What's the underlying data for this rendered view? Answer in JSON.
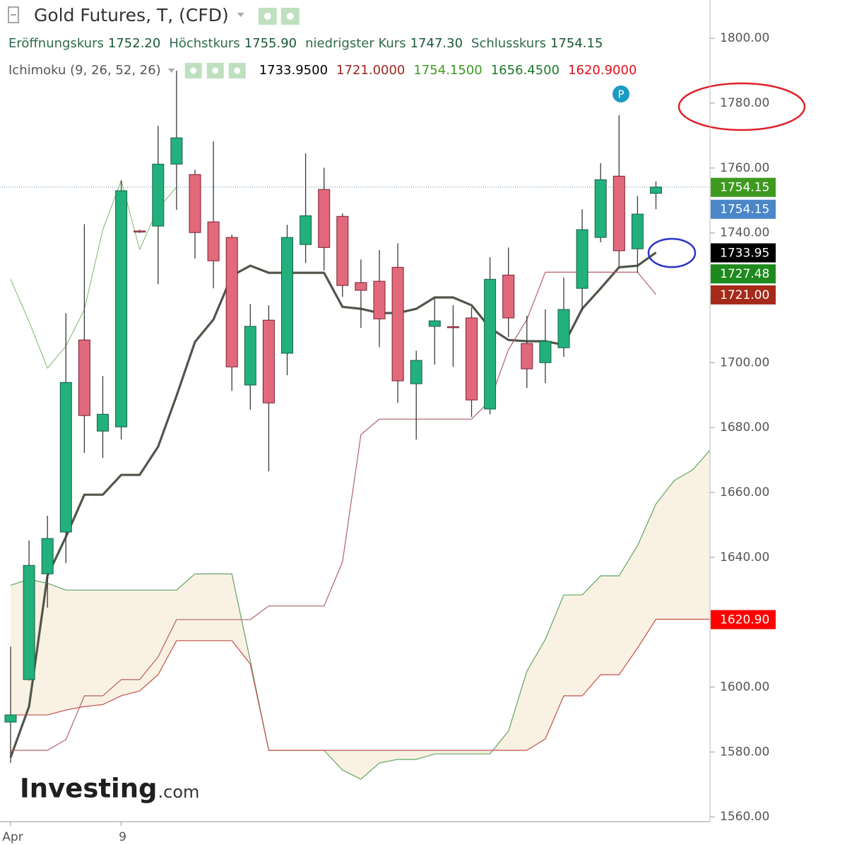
{
  "chart_data": {
    "type": "candlestick",
    "title": "Gold Futures, T, (CFD)",
    "ohlc_header": [
      {
        "name": "Eröffnungskurs",
        "value": "1752.20"
      },
      {
        "name": "Höchstkurs",
        "value": "1755.90"
      },
      {
        "name": "niedrigster Kurs",
        "value": "1747.30"
      },
      {
        "name": "Schlusskurs",
        "value": "1754.15"
      }
    ],
    "indicator": "Ichimoku (9, 26, 52, 26)",
    "readings": [
      {
        "text": "1733.9500",
        "color": "#000000"
      },
      {
        "text": "1721.0000",
        "color": "#a0281e"
      },
      {
        "text": "1754.1500",
        "color": "#3e9a1f"
      },
      {
        "text": "1656.4500",
        "color": "#1d7a2d"
      },
      {
        "text": "1620.9000",
        "color": "#e0101a"
      }
    ],
    "categories": [
      "Apr",
      null,
      null,
      null,
      null,
      null,
      "9",
      null,
      null,
      null,
      null,
      null,
      null,
      null,
      null,
      null,
      null,
      null,
      null,
      null,
      null,
      null,
      null,
      null,
      null,
      null,
      null,
      null,
      null,
      null,
      null,
      null,
      null,
      null,
      null,
      null,
      null,
      null,
      null
    ],
    "open": [
      1589.2,
      1602.3,
      1634.9,
      1647.8,
      1707.0,
      1678.9,
      1680.2,
      1740.6,
      1742.1,
      1761.2,
      1758.0,
      1743.4,
      1738.6,
      1693.1,
      1713.1,
      1702.9,
      1736.4,
      1753.4,
      1745.1,
      1724.7,
      1725.1,
      1729.4,
      1693.5,
      1711.2,
      1711.1,
      1713.8,
      1685.7,
      1727.0,
      1705.9,
      1700.0,
      1704.6,
      1722.9,
      1738.6,
      1757.5,
      1735.1,
      1752.2,
      null,
      null,
      null
    ],
    "high": [
      1612.5,
      1645.2,
      1652.8,
      1715.3,
      1742.7,
      1695.9,
      1756.2,
      1741.0,
      1773.0,
      1790.0,
      1759.5,
      1768.2,
      1739.5,
      1718.1,
      1717.7,
      1742.5,
      1764.5,
      1760.1,
      1746.0,
      1731.8,
      1734.7,
      1736.8,
      1703.7,
      1719.9,
      1717.7,
      1717.0,
      1732.5,
      1735.5,
      1714.4,
      1716.4,
      1726.2,
      1747.3,
      1761.5,
      1776.3,
      1751.4,
      1755.9,
      null,
      null,
      null
    ],
    "low": [
      1576.6,
      1602.0,
      1624.5,
      1638.2,
      1672.2,
      1670.6,
      1676.3,
      1740.0,
      1724.2,
      1747.1,
      1732.1,
      1722.9,
      1691.3,
      1685.5,
      1666.5,
      1696.1,
      1730.7,
      1728.4,
      1720.3,
      1710.7,
      1704.8,
      1687.6,
      1676.3,
      1699.4,
      1698.7,
      1683.3,
      1684.1,
      1707.9,
      1692.2,
      1693.7,
      1701.8,
      1715.9,
      1737.1,
      1729.4,
      1727.7,
      1747.3,
      null,
      null,
      null
    ],
    "close": [
      1591.4,
      1637.5,
      1645.8,
      1693.9,
      1683.7,
      1684.1,
      1753.0,
      1740.4,
      1761.2,
      1769.3,
      1740.1,
      1731.4,
      1698.7,
      1711.2,
      1687.6,
      1738.6,
      1745.3,
      1735.5,
      1723.8,
      1722.3,
      1713.5,
      1694.4,
      1700.7,
      1712.9,
      1710.9,
      1688.5,
      1725.7,
      1713.8,
      1698.1,
      1706.6,
      1716.4,
      1741.0,
      1756.4,
      1734.5,
      1745.8,
      1754.15,
      null,
      null,
      null
    ],
    "up_color": "#22b07d",
    "down_color": "#e2697c",
    "series": [
      {
        "color": "#50564a",
        "values": [
          1578.3,
          1594.0,
          1634.3,
          1646.3,
          1659.3,
          1659.3,
          1665.4,
          1665.4,
          1674.1,
          1689.8,
          1706.4,
          1713.3,
          1726.8,
          1729.9,
          1727.7,
          1727.7,
          1727.7,
          1727.7,
          1717.2,
          1716.6,
          1715.3,
          1715.3,
          1716.6,
          1720.1,
          1720.1,
          1717.7,
          1710.7,
          1707.0,
          1706.6,
          1706.6,
          1705.5,
          1716.6,
          1722.9,
          1729.4,
          1729.9,
          1733.95,
          null,
          null,
          null
        ]
      },
      {
        "color": "#b06068",
        "values": [
          1580.5,
          1580.5,
          1580.5,
          1583.8,
          1597.3,
          1597.3,
          1602.3,
          1602.3,
          1609.3,
          1620.8,
          1620.8,
          1620.8,
          1620.8,
          1620.8,
          1625.0,
          1625.0,
          1625.0,
          1625.0,
          1638.6,
          1677.8,
          1682.6,
          1682.6,
          1682.6,
          1682.6,
          1682.6,
          1682.6,
          1688.3,
          1704.0,
          1713.3,
          1727.9,
          1727.9,
          1727.9,
          1727.9,
          1727.9,
          1727.9,
          1721.0,
          null,
          null,
          null
        ]
      },
      {
        "color": "#7cb86a",
        "values": [
          1725.7,
          1712.7,
          1698.3,
          1705.1,
          1716.4,
          1741.0,
          1756.2,
          1734.9,
          1747.5,
          1754.15,
          null,
          null,
          null,
          null,
          null,
          null,
          null,
          null,
          null,
          null,
          null,
          null,
          null,
          null,
          null,
          null,
          null,
          null,
          null,
          null,
          null,
          null,
          null,
          null,
          null,
          null,
          null,
          null,
          null
        ]
      },
      {
        "color": "#5fa560",
        "values": [
          1631.4,
          1633.2,
          1632.0,
          1629.9,
          1629.9,
          1629.9,
          1629.9,
          1629.9,
          1629.9,
          1629.9,
          1634.9,
          1634.9,
          1634.9,
          1608.1,
          1580.5,
          1580.5,
          1580.5,
          1580.5,
          1574.4,
          1571.6,
          1576.6,
          1577.7,
          1577.7,
          1579.4,
          1579.4,
          1579.4,
          1579.4,
          1586.4,
          1604.9,
          1614.7,
          1628.4,
          1628.4,
          1634.3,
          1634.3,
          1643.6,
          1656.45,
          1663.7,
          1667.0,
          1673.5
        ]
      },
      {
        "color": "#c0504a",
        "values": [
          1591.4,
          1591.4,
          1591.4,
          1592.9,
          1594.0,
          1594.6,
          1597.3,
          1598.8,
          1603.8,
          1614.3,
          1614.3,
          1614.3,
          1614.3,
          1607.1,
          1580.5,
          1580.5,
          1580.5,
          1580.5,
          1580.5,
          1580.5,
          1580.5,
          1580.5,
          1580.5,
          1580.5,
          1580.5,
          1580.5,
          1580.5,
          1580.5,
          1580.5,
          1584.0,
          1597.3,
          1597.3,
          1603.8,
          1603.8,
          1612.0,
          1620.9,
          1620.9,
          1620.9,
          1620.9
        ]
      }
    ],
    "cloud_color": "#f8f0e0",
    "ylim": [
      1558.5,
      1811.8
    ],
    "yticks": [
      {
        "value": 1560,
        "label": "1560.00"
      },
      {
        "value": 1580,
        "label": "1580.00"
      },
      {
        "value": 1600,
        "label": "1600.00"
      },
      {
        "value": 1620,
        "label": "1620.00"
      },
      {
        "value": 1640,
        "label": "1640.00"
      },
      {
        "value": 1660,
        "label": "1660.00"
      },
      {
        "value": 1680,
        "label": "1680.00"
      },
      {
        "value": 1700,
        "label": "1700.00"
      },
      {
        "value": 1720,
        "label": "1720.00"
      },
      {
        "value": 1740,
        "label": "1740.00"
      },
      {
        "value": 1760,
        "label": "1760.00"
      },
      {
        "value": 1780,
        "label": "1780.00"
      },
      {
        "value": 1800,
        "label": "1800.00"
      }
    ],
    "price_tags": [
      {
        "value": 1754.15,
        "label": "1754.15",
        "color": "#3e9a1f"
      },
      {
        "value": 1754.15,
        "label": "1754.15",
        "color": "#4a86c8"
      },
      {
        "value": 1733.95,
        "label": "1733.95",
        "color": "#000000"
      },
      {
        "value": 1727.48,
        "label": "1727.48",
        "color": "#1e8a1e"
      },
      {
        "value": 1721.0,
        "label": "1721.00",
        "color": "#a52a1a"
      },
      {
        "value": 1620.9,
        "label": "1620.90",
        "color": "#ff0000"
      }
    ],
    "annotation": "P",
    "logo": "Investing",
    "logo_suffix": ".com"
  }
}
